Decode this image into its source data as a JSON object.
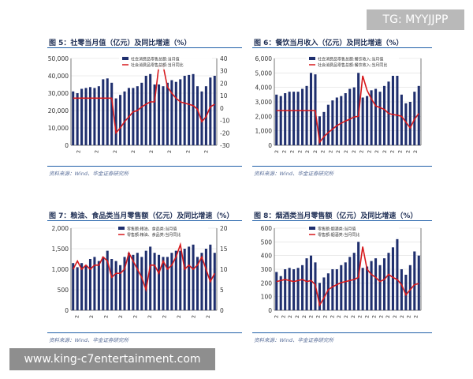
{
  "watermarks": {
    "top": "TG: MYYJJPP",
    "bottom": "www.king-c7entertainment.com"
  },
  "colors": {
    "bar": "#1f2f6e",
    "line": "#d7191c",
    "grid": "#dddddd",
    "accent": "#1f5fa8"
  },
  "panels": [
    {
      "title": "图 5：社零当月值（亿元）及同比增速（%）",
      "source": "资料来源：Wind、华金证券研究所"
    },
    {
      "title": "图 6：餐饮当月收入（亿元）及同比增速（%）",
      "source": "资料来源：Wind、华金证券研究所"
    },
    {
      "title": "图 7：粮油、食品类当月零售额（亿元）及同比增速（%）",
      "source": "资料来源：Wind、华金证券研究所"
    },
    {
      "title": "图 8：烟酒类当月零售额（亿元）及同比增速（%）",
      "source": "资料来源：Wind、华金证券研究所"
    }
  ],
  "chart_data": [
    {
      "type": "bar",
      "legend": [
        "社会消费品零售总额:当月值",
        "社会消费品零售总额:当月同比"
      ],
      "y_left": {
        "ylim": [
          0,
          50000
        ],
        "ticks": [
          "0",
          "10,000",
          "20,000",
          "30,000",
          "40,000",
          "50,000"
        ]
      },
      "y_right": {
        "ylim": [
          -30,
          40
        ],
        "ticks": [
          "-30",
          "-20",
          "-10",
          "0",
          "10",
          "20",
          "30",
          "40"
        ]
      },
      "x_ticks": [
        "2",
        "2",
        "2",
        "2",
        "2",
        "2",
        "2",
        "2"
      ],
      "series": [
        {
          "name": "社会消费品零售总额:当月值",
          "kind": "bar",
          "values": [
            31000,
            30000,
            32500,
            33000,
            33500,
            33000,
            34000,
            38000,
            38500,
            36000,
            27000,
            29000,
            31000,
            33000,
            33000,
            34000,
            36000,
            40000,
            41000,
            35000,
            35000,
            34000,
            36000,
            37500,
            36500,
            38000,
            40000,
            40500,
            41000,
            34000,
            31000,
            34000,
            39000,
            40000
          ]
        },
        {
          "name": "社会消费品零售总额:当月同比",
          "kind": "line",
          "values": [
            8,
            8,
            8,
            8,
            8,
            8,
            8,
            8,
            8,
            8,
            -20,
            -16,
            -11,
            -7,
            -3,
            -2,
            1,
            3,
            5,
            5,
            34,
            34,
            17,
            12,
            8,
            5,
            4,
            3,
            2,
            -1,
            -11,
            -7,
            1,
            3
          ]
        }
      ]
    },
    {
      "type": "bar",
      "legend": [
        "社会消费品零售总额:餐饮收入:当月值",
        "社会消费品零售总额:餐饮收入:当月同比"
      ],
      "y_left": {
        "ylim": [
          0,
          6000
        ],
        "ticks": [
          "0",
          "1,000",
          "2,000",
          "3,000",
          "4,000",
          "5,000",
          "6,000"
        ]
      },
      "y_right": {
        "ylim": [
          -50,
          100
        ],
        "ticks": []
      },
      "x_ticks": [
        "2",
        "2",
        "2",
        "2",
        "2",
        "2",
        "2",
        "2",
        "2",
        "2",
        "2",
        "2",
        "2",
        "2",
        "2",
        "2",
        "2",
        "2",
        "2"
      ],
      "series": [
        {
          "name": "社会消费品零售总额:餐饮收入:当月值",
          "kind": "bar",
          "values": [
            3500,
            3400,
            3600,
            3700,
            3700,
            3700,
            3900,
            4100,
            5000,
            4900,
            2000,
            2300,
            2800,
            3100,
            3300,
            3400,
            3600,
            3900,
            4000,
            5000,
            3300,
            3400,
            3800,
            3900,
            3700,
            4100,
            4400,
            4800,
            4800,
            3500,
            2900,
            3000,
            3700,
            4100
          ]
        },
        {
          "name": "社会消费品零售总额:餐饮收入:当月同比",
          "kind": "line",
          "values": [
            10,
            10,
            10,
            10,
            10,
            10,
            10,
            10,
            10,
            10,
            -45,
            -35,
            -28,
            -22,
            -16,
            -12,
            -8,
            -5,
            -1,
            0,
            70,
            45,
            30,
            18,
            15,
            12,
            5,
            3,
            2,
            0,
            -10,
            -20,
            -5,
            5
          ]
        }
      ]
    },
    {
      "type": "bar",
      "legend": [
        "零售额:粮油、食品类:当月值",
        "零售额:粮油、食品类:当月同比"
      ],
      "y_left": {
        "ylim": [
          0,
          2000
        ],
        "ticks": [
          "0",
          "500",
          "1,000",
          "1,500",
          "2,000"
        ]
      },
      "y_right": {
        "ylim": [
          0,
          20
        ],
        "ticks": [
          "0",
          "5",
          "10",
          "15",
          "20"
        ]
      },
      "x_ticks": [
        "2",
        "2",
        "2",
        "2",
        "2",
        "2",
        "2",
        "2",
        "2",
        "2"
      ],
      "series": [
        {
          "name": "零售额:粮油、食品类:当月值",
          "kind": "bar",
          "values": [
            1150,
            1050,
            1150,
            1100,
            1250,
            1300,
            1200,
            1300,
            1450,
            1250,
            1200,
            1100,
            1300,
            1400,
            1350,
            1400,
            1300,
            1450,
            1550,
            1400,
            1350,
            1300,
            1300,
            1400,
            1450,
            1450,
            1500,
            1550,
            1600,
            1300,
            1400,
            1500,
            1600,
            1400
          ]
        },
        {
          "name": "零售额:粮油、食品类:当月同比",
          "kind": "line",
          "values": [
            10,
            12,
            10,
            11,
            10,
            11,
            11,
            13,
            12,
            8,
            9,
            9,
            10,
            14,
            12,
            10,
            8,
            5,
            11,
            11,
            9,
            12,
            10,
            11,
            13,
            16,
            10,
            11,
            10,
            11,
            13,
            10,
            7,
            9
          ]
        }
      ]
    },
    {
      "type": "bar",
      "legend": [
        "零售额:烟酒类:当月值",
        "零售额:烟酒类:当月同比"
      ],
      "y_left": {
        "ylim": [
          0,
          600
        ],
        "ticks": [
          "0",
          "100",
          "200",
          "300",
          "400",
          "500",
          "600"
        ]
      },
      "y_right": {
        "ylim": [
          -20,
          60
        ],
        "ticks": []
      },
      "x_ticks": [
        "2",
        "2",
        "2",
        "2",
        "2",
        "2",
        "2",
        "2",
        "2",
        "2",
        "2",
        "2",
        "2",
        "2",
        "2",
        "2",
        "2",
        "2",
        "2",
        "2",
        "2"
      ],
      "series": [
        {
          "name": "零售额:烟酒类:当月值",
          "kind": "bar",
          "values": [
            280,
            250,
            300,
            310,
            300,
            310,
            330,
            380,
            400,
            350,
            200,
            240,
            270,
            300,
            300,
            330,
            350,
            390,
            420,
            500,
            310,
            320,
            360,
            380,
            330,
            380,
            420,
            460,
            530,
            300,
            260,
            330,
            430,
            400
          ]
        },
        {
          "name": "零售额:烟酒类:当月同比",
          "kind": "line",
          "values": [
            8,
            9,
            10,
            9,
            8,
            9,
            10,
            8,
            9,
            5,
            -15,
            -8,
            0,
            3,
            5,
            7,
            8,
            9,
            10,
            12,
            42,
            20,
            15,
            12,
            8,
            10,
            15,
            12,
            10,
            5,
            -5,
            0,
            5,
            6
          ]
        }
      ]
    }
  ]
}
